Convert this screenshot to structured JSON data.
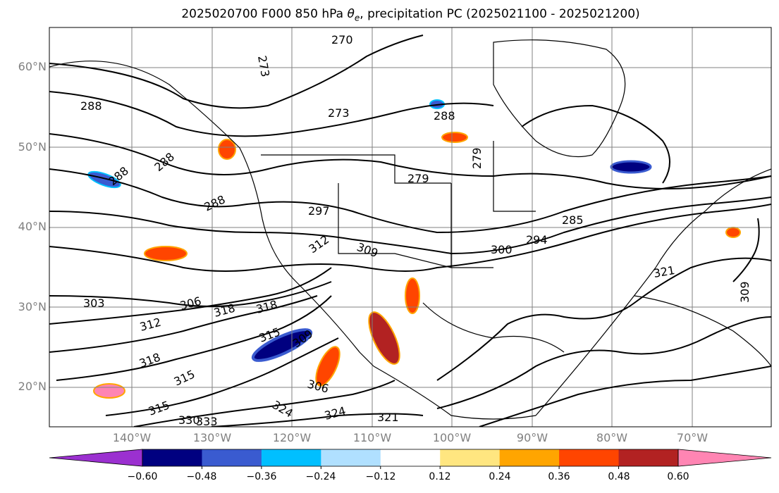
{
  "title_prefix": "2025020700 F000 850 hPa ",
  "title_symbol": "θ",
  "title_sub": "e",
  "title_suffix": ", precipitation PC (2025021100 - 2025021200)",
  "lat_labels": [
    "60°N",
    "50°N",
    "40°N",
    "30°N",
    "20°N"
  ],
  "lon_labels": [
    "140°W",
    "130°W",
    "120°W",
    "110°W",
    "100°W",
    "90°W",
    "80°W",
    "70°W"
  ],
  "contour_labels": [
    "270",
    "273",
    "273",
    "288",
    "288",
    "288",
    "288",
    "288",
    "279",
    "279",
    "285",
    "297",
    "294",
    "300",
    "309",
    "312",
    "303",
    "306",
    "312",
    "318",
    "318",
    "315",
    "309",
    "318",
    "315",
    "306",
    "324",
    "321",
    "324",
    "330",
    "333",
    "315",
    "321",
    "309"
  ],
  "colorbar": {
    "ticks": [
      "−0.60",
      "−0.48",
      "−0.36",
      "−0.24",
      "−0.12",
      "0.12",
      "0.24",
      "0.36",
      "0.48",
      "0.60"
    ],
    "colors": [
      "#9b30d0",
      "#000080",
      "#3a5bd0",
      "#00bfff",
      "#b0e0ff",
      "#ffffff",
      "#ffe680",
      "#ffa500",
      "#ff4500",
      "#b22222",
      "#ff85b3"
    ]
  }
}
